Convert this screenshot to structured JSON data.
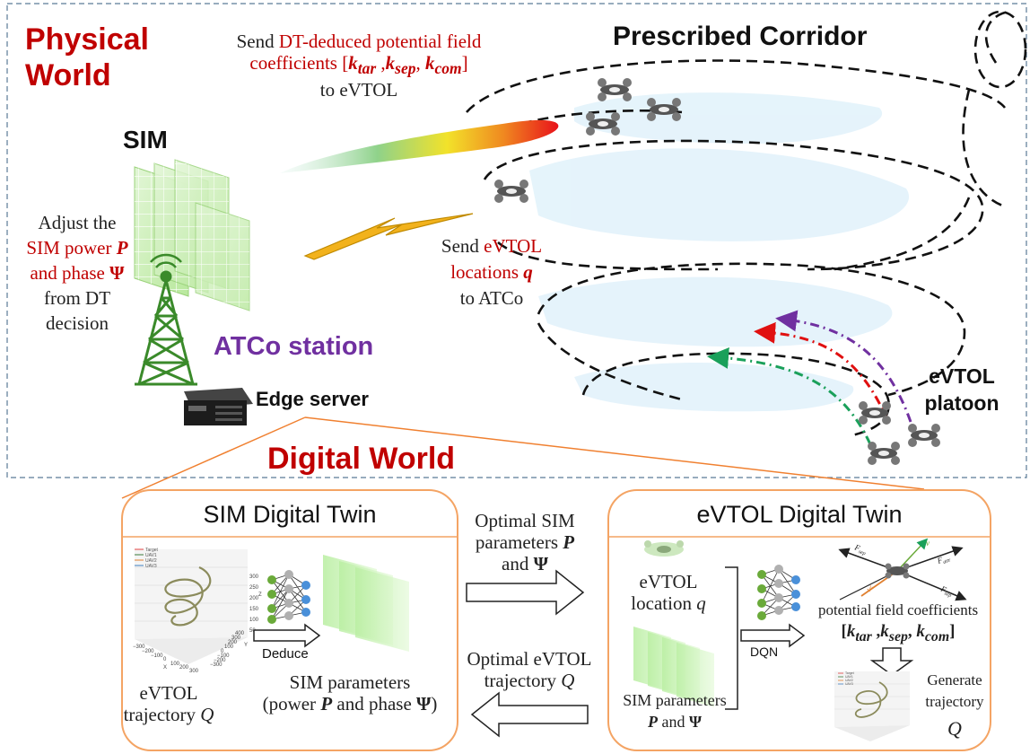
{
  "physical_world": {
    "title_line1": "Physical",
    "title_line2": "World",
    "sim_label": "SIM",
    "corridor_label": "Prescribed Corridor",
    "atco_label": "ATCo station",
    "edge_label": "Edge server",
    "platoon_line1": "eVTOL",
    "platoon_line2": "platoon",
    "send_coeff": {
      "prefix": "Send",
      "highlight": "DT-deduced potential field",
      "line2": "coefficients [",
      "k_tar": "k",
      "k_tar_sub": "tar",
      "k_sep": "k",
      "k_sep_sub": "sep",
      "k_com": "k",
      "k_com_sub": "com",
      "line2_end": "]",
      "line3": "to eVTOL"
    },
    "adjust": {
      "line1": "Adjust the",
      "line2": "SIM power",
      "P": "P",
      "line3": "and phase",
      "Psi": "Ψ",
      "line4": "from DT",
      "line5": "decision"
    },
    "send_loc": {
      "prefix": "Send",
      "highlight": "eVTOL",
      "line2": "locations",
      "q": "q",
      "line3": "to ATCo"
    }
  },
  "digital_world": {
    "title": "Digital World",
    "sim_twin": {
      "title": "SIM Digital Twin",
      "deduce_label": "Deduce",
      "traj_line1": "eVTOL",
      "traj_line2": "trajectory",
      "Q": "Q",
      "params_line1": "SIM parameters",
      "params_line2a": "(power",
      "params_P": "P",
      "params_line2b": "and phase",
      "params_Psi": "Ψ",
      "params_line2c": ")"
    },
    "middle": {
      "opt_sim_line1": "Optimal SIM",
      "opt_sim_line2": "parameters",
      "P": "P",
      "opt_sim_line3": "and",
      "Psi": "Ψ",
      "opt_traj_line1": "Optimal eVTOL",
      "opt_traj_line2": "trajectory",
      "Q": "Q"
    },
    "evtol_twin": {
      "title": "eVTOL Digital Twin",
      "loc_line1": "eVTOL",
      "loc_line2": "location",
      "q": "q",
      "dqn_label": "DQN",
      "coeff_line1": "potential field coefficients",
      "coeff_open": "[",
      "k": "k",
      "tar": "tar",
      "sep": "sep",
      "com": "com",
      "coeff_close": "]",
      "gen_line1": "Generate",
      "gen_line2": "trajectory",
      "Q": "Q",
      "params_line1": "SIM parameters",
      "P": "P",
      "params_and": "and",
      "Psi": "Ψ"
    }
  },
  "plot_legend": [
    "Target",
    "UAV1",
    "UAV2",
    "UAV3"
  ],
  "plot_ticks": {
    "z": [
      "300",
      "250",
      "200",
      "150",
      "100",
      "50"
    ],
    "z_label": "Z",
    "x": [
      "−300",
      "−200",
      "−100",
      "0",
      "100",
      "200",
      "300"
    ],
    "x_label": "X",
    "y": [
      "400",
      "300",
      "200",
      "100",
      "0",
      "−100",
      "−200",
      "−300"
    ],
    "y_label": "Y"
  },
  "forces": {
    "f_sep": "F",
    "f_sep_sub": "sep",
    "f_attr": "F",
    "f_attr_sub": "attr",
    "f_sep2": "F",
    "f_sep2_sub": "sep",
    "f_coh": "F",
    "f_coh_sub": "com",
    "v": "v",
    "vl": "vᴸ"
  },
  "colors": {
    "red_text": "#c00000",
    "purple_text": "#7030a0",
    "twin_border": "#f4a464",
    "frame_dash": "#5a7a96",
    "nn_green": "#6aaa3a",
    "nn_gray": "#b0b0b0",
    "nn_blue": "#4a90d9",
    "tower_green": "#3a8a2a"
  }
}
